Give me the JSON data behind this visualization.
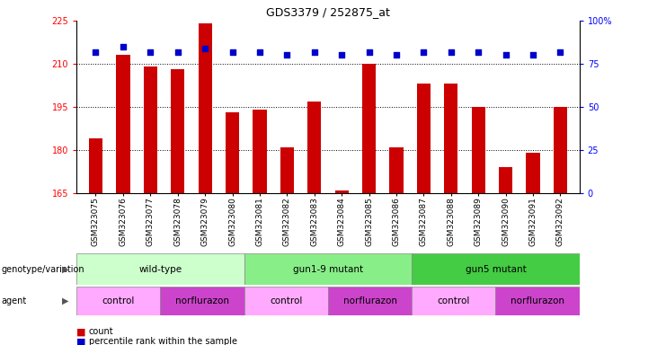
{
  "title": "GDS3379 / 252875_at",
  "samples": [
    "GSM323075",
    "GSM323076",
    "GSM323077",
    "GSM323078",
    "GSM323079",
    "GSM323080",
    "GSM323081",
    "GSM323082",
    "GSM323083",
    "GSM323084",
    "GSM323085",
    "GSM323086",
    "GSM323087",
    "GSM323088",
    "GSM323089",
    "GSM323090",
    "GSM323091",
    "GSM323092"
  ],
  "counts": [
    184,
    213,
    209,
    208,
    224,
    193,
    194,
    181,
    197,
    166,
    210,
    181,
    203,
    203,
    195,
    174,
    179,
    195
  ],
  "percentiles": [
    82,
    85,
    82,
    82,
    84,
    82,
    82,
    80,
    82,
    80,
    82,
    80,
    82,
    82,
    82,
    80,
    80,
    82
  ],
  "ylim_left": [
    165,
    225
  ],
  "ylim_right": [
    0,
    100
  ],
  "yticks_left": [
    165,
    180,
    195,
    210,
    225
  ],
  "yticks_right": [
    0,
    25,
    50,
    75,
    100
  ],
  "bar_color": "#cc0000",
  "dot_color": "#0000cc",
  "bg_color": "#ffffff",
  "tick_label_bg": "#dddddd",
  "genotype_groups": [
    {
      "label": "wild-type",
      "start": 0,
      "end": 6,
      "color": "#ccffcc"
    },
    {
      "label": "gun1-9 mutant",
      "start": 6,
      "end": 12,
      "color": "#88ee88"
    },
    {
      "label": "gun5 mutant",
      "start": 12,
      "end": 18,
      "color": "#44cc44"
    }
  ],
  "agent_groups": [
    {
      "label": "control",
      "start": 0,
      "end": 3,
      "color": "#ffaaff"
    },
    {
      "label": "norflurazon",
      "start": 3,
      "end": 6,
      "color": "#dd44dd"
    },
    {
      "label": "control",
      "start": 6,
      "end": 9,
      "color": "#ffaaff"
    },
    {
      "label": "norflurazon",
      "start": 9,
      "end": 12,
      "color": "#dd44dd"
    },
    {
      "label": "control",
      "start": 12,
      "end": 15,
      "color": "#ffaaff"
    },
    {
      "label": "norflurazon",
      "start": 15,
      "end": 18,
      "color": "#dd44dd"
    }
  ],
  "xlabel_genotype": "genotype/variation",
  "xlabel_agent": "agent",
  "legend_count_color": "#cc0000",
  "legend_dot_color": "#0000cc",
  "right_tick_labels": [
    "0",
    "25",
    "50",
    "75",
    "100%"
  ]
}
